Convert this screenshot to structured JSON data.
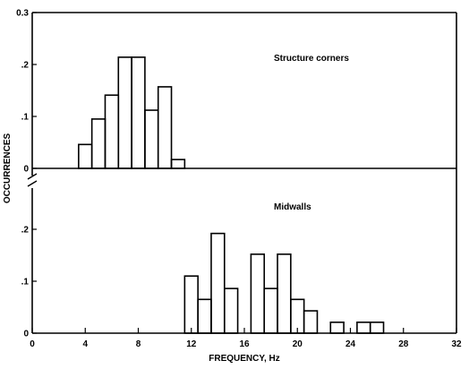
{
  "chart_data": [
    {
      "type": "bar",
      "panel_label": "Structure corners",
      "bin_width": 1,
      "bins": [
        {
          "x": 4,
          "y": 0.046
        },
        {
          "x": 5,
          "y": 0.095
        },
        {
          "x": 6,
          "y": 0.141
        },
        {
          "x": 7,
          "y": 0.214
        },
        {
          "x": 8,
          "y": 0.214
        },
        {
          "x": 9,
          "y": 0.112
        },
        {
          "x": 10,
          "y": 0.157
        },
        {
          "x": 11,
          "y": 0.017
        }
      ],
      "ylim": [
        0,
        0.3
      ],
      "yticks": [
        "0",
        ".1",
        ".2",
        "0.3"
      ],
      "xlim": [
        0,
        32
      ]
    },
    {
      "type": "bar",
      "panel_label": "Midwalls",
      "bin_width": 1,
      "bins": [
        {
          "x": 12,
          "y": 0.11
        },
        {
          "x": 13,
          "y": 0.065
        },
        {
          "x": 14,
          "y": 0.192
        },
        {
          "x": 15,
          "y": 0.086
        },
        {
          "x": 17,
          "y": 0.152
        },
        {
          "x": 18,
          "y": 0.086
        },
        {
          "x": 19,
          "y": 0.152
        },
        {
          "x": 20,
          "y": 0.065
        },
        {
          "x": 21,
          "y": 0.043
        },
        {
          "x": 23,
          "y": 0.021
        },
        {
          "x": 25,
          "y": 0.021
        },
        {
          "x": 26,
          "y": 0.021
        }
      ],
      "ylim": [
        0,
        0.3
      ],
      "yticks": [
        "0",
        ".1",
        ".2"
      ],
      "xlim": [
        0,
        32
      ]
    }
  ],
  "axes": {
    "ylabel": "OCCURRENCES",
    "xlabel": "FREQUENCY, Hz",
    "xticks": [
      "0",
      "4",
      "8",
      "12",
      "16",
      "20",
      "24",
      "28",
      "32"
    ]
  }
}
